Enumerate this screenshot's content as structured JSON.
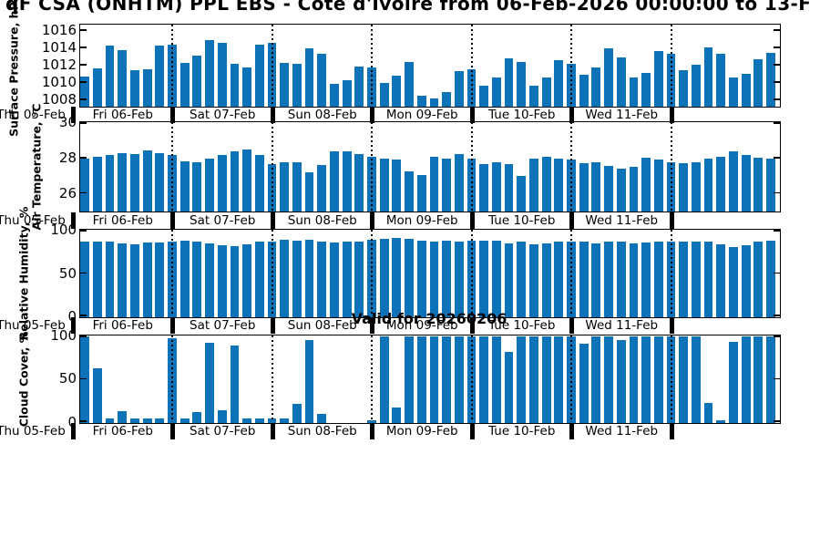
{
  "title": "qF CSA (ONHTM) PPL EBS  - Côte d'Ivoire from 06-Feb-2026 00:00:00 to 13-F",
  "annotation": "Valid for 20260206",
  "bar_color": "#0e72b8",
  "x_axis": {
    "start": "06-Feb-2026 03:00",
    "step_hours": 3,
    "n_points": 56,
    "day_labels": [
      "Thu 05-Feb",
      "Fri 06-Feb",
      "Sat 07-Feb",
      "Sun 08-Feb",
      "Mon 09-Feb",
      "Tue 10-Feb",
      "Wed 11-Feb"
    ]
  },
  "chart_data": [
    {
      "type": "bar",
      "name": "surface-pressure",
      "ylabel": "Surface Pressure, hPa",
      "yticks": [
        1016,
        1014,
        1012,
        1010,
        1008
      ],
      "ylim": [
        1007.3,
        1016.7
      ],
      "values": [
        1010.7,
        1011.7,
        1014.3,
        1013.8,
        1011.5,
        1011.6,
        1014.3,
        1014.4,
        1012.3,
        1013.2,
        1015.0,
        1014.6,
        1012.2,
        1011.8,
        1014.4,
        1014.6,
        1012.3,
        1012.2,
        1014.0,
        1013.4,
        1009.9,
        1010.3,
        1011.9,
        1011.8,
        1010.0,
        1010.8,
        1012.4,
        1008.5,
        1008.2,
        1008.9,
        1011.4,
        1011.6,
        1009.7,
        1010.6,
        1012.8,
        1012.4,
        1009.7,
        1010.6,
        1012.6,
        1012.2,
        1010.9,
        1011.8,
        1014.0,
        1012.9,
        1010.6,
        1011.2,
        1013.7,
        1013.4,
        1011.5,
        1012.1,
        1014.1,
        1013.4,
        1010.6,
        1011.0,
        1012.7,
        1013.5
      ]
    },
    {
      "type": "bar",
      "name": "air-temperature",
      "ylabel": "Air Temperature, °C",
      "yticks": [
        30,
        28,
        26
      ],
      "ylim": [
        25,
        30
      ],
      "values": [
        28.0,
        28.1,
        28.2,
        28.3,
        28.25,
        28.45,
        28.3,
        28.2,
        27.85,
        27.8,
        28.0,
        28.2,
        28.4,
        28.5,
        28.2,
        27.7,
        27.8,
        27.8,
        27.2,
        27.65,
        28.4,
        28.4,
        28.25,
        28.1,
        28.0,
        27.95,
        27.25,
        27.05,
        28.1,
        28.0,
        28.25,
        28.0,
        27.7,
        27.8,
        27.7,
        27.0,
        28.0,
        28.1,
        28.0,
        27.95,
        27.75,
        27.8,
        27.6,
        27.4,
        27.55,
        28.05,
        27.95,
        27.8,
        27.75,
        27.8,
        28.0,
        28.1,
        28.4,
        28.2,
        28.05,
        28.0
      ]
    },
    {
      "type": "bar",
      "name": "relative-humidity",
      "ylabel": "Relative Humidity, %",
      "yticks": [
        100,
        50,
        0
      ],
      "ylim": [
        0,
        100
      ],
      "values": [
        87,
        88,
        87,
        85,
        84,
        86,
        86,
        87,
        89,
        87,
        85,
        83,
        82,
        84,
        88,
        88,
        90,
        89,
        90,
        87,
        86,
        87,
        88,
        90,
        91,
        92,
        91,
        89,
        88,
        89,
        87,
        89,
        89,
        89,
        85,
        88,
        84,
        85,
        87,
        87,
        87,
        85,
        87,
        87,
        85,
        86,
        87,
        88,
        87,
        88,
        87,
        84,
        81,
        83,
        88,
        89
      ]
    },
    {
      "type": "bar",
      "name": "cloud-cover",
      "ylabel": "Cloud Cover, %",
      "yticks": [
        100,
        50,
        0
      ],
      "ylim": [
        0,
        100
      ],
      "values": [
        100,
        63,
        5,
        13,
        5,
        5,
        5,
        98,
        5,
        12,
        93,
        15,
        89,
        5,
        5,
        5,
        5,
        22,
        96,
        10,
        0,
        0,
        0,
        3,
        100,
        18,
        100,
        100,
        100,
        100,
        100,
        100,
        100,
        100,
        82,
        100,
        100,
        100,
        100,
        100,
        92,
        100,
        100,
        96,
        100,
        100,
        100,
        100,
        100,
        100,
        23,
        3,
        94,
        100,
        100,
        100
      ]
    }
  ]
}
